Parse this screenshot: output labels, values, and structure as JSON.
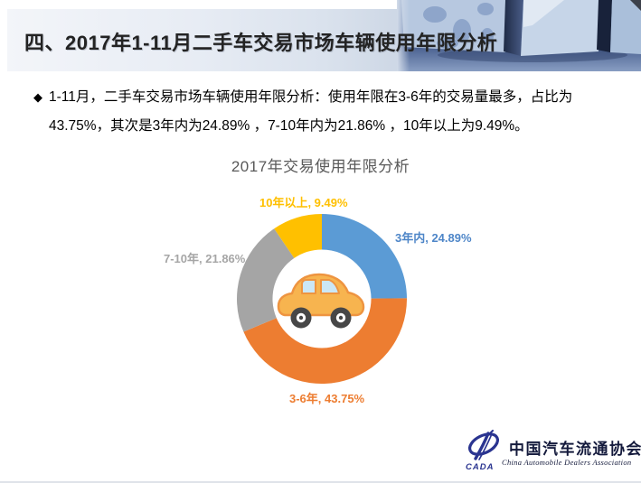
{
  "slide": {
    "header": {
      "title": "四、2017年1-11月二手车交易市场车辆使用年限分析",
      "decoration": "blue-3d-cubes-world-map-graphic"
    },
    "bullet": {
      "marker": "◆",
      "lines": [
        "1-11月，二手车交易市场车辆使用年限分析：使用年限在3-6年的交易量最多，占比为",
        "43.75%，其次是3年内为24.89% ，7-10年内为21.86% ，10年以上为9.49%。"
      ]
    },
    "footer_logo": {
      "acronym": "CADA",
      "name_cn": "中国汽车流通协会",
      "name_en": "China Automobile Dealers Association",
      "emblem": "cada-swoosh-ellipse",
      "color": "#2A3490"
    }
  },
  "chart_data": {
    "type": "pie",
    "subtype": "donut",
    "title": "2017年交易使用年限分析",
    "categories": [
      "3年内",
      "3-6年",
      "7-10年",
      "10年以上"
    ],
    "values": [
      24.89,
      43.75,
      21.86,
      9.49
    ],
    "unit": "%",
    "colors": [
      "#5B9BD5",
      "#ED7D31",
      "#A5A5A5",
      "#FFC000"
    ],
    "label_colors": [
      "#4E86C8",
      "#ED7D31",
      "#A6A6A6",
      "#FFC000"
    ],
    "labels": [
      "3年内, 24.89%",
      "3-6年, 43.75%",
      "7-10年, 21.86%",
      "10年以上, 9.49%"
    ],
    "start_angle_deg": 0,
    "direction": "clockwise",
    "hole_ratio": 0.58,
    "legend": "none",
    "center_image": "cartoon-car"
  }
}
